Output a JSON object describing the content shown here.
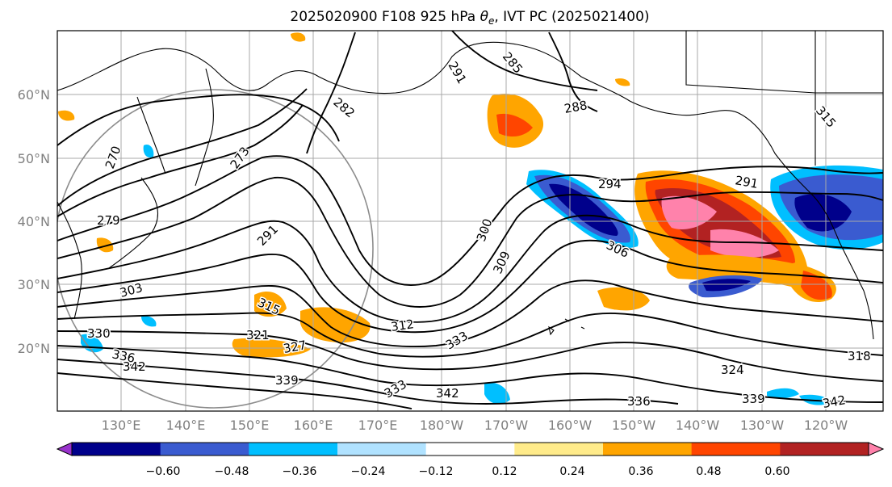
{
  "title": "2025020900 F108 925 hPa θe, IVT PC (2025021400)",
  "title_parts": {
    "prefix": "2025020900 F108 925 hPa ",
    "theta": "θ",
    "sub": "e",
    "suffix": ", IVT PC (2025021400)"
  },
  "lat_labels": [
    "60°N",
    "50°N",
    "40°N",
    "30°N",
    "20°N"
  ],
  "lon_labels": [
    "130°E",
    "140°E",
    "150°E",
    "160°E",
    "170°E",
    "180°W",
    "170°W",
    "160°W",
    "150°W",
    "140°W",
    "130°W",
    "120°W"
  ],
  "colorbar": {
    "ticks": [
      "−0.60",
      "−0.48",
      "−0.36",
      "−0.24",
      "−0.12",
      "0.12",
      "0.24",
      "0.36",
      "0.48",
      "0.60"
    ],
    "colors": [
      "#9932cc",
      "#00008b",
      "#3a5bd0",
      "#00bfff",
      "#b0e2ff",
      "#ffffff",
      "#ffeb8a",
      "#ffa500",
      "#ff4500",
      "#b22222",
      "#ff82ab"
    ]
  },
  "contour_labels": [
    "270",
    "273",
    "279",
    "282",
    "285",
    "288",
    "291",
    "291",
    "294",
    "300",
    "303",
    "306",
    "309",
    "312",
    "315",
    "318",
    "321",
    "324",
    "327",
    "330",
    "333",
    "333",
    "336",
    "336",
    "339",
    "339",
    "342",
    "342",
    "342",
    "315",
    "291"
  ],
  "colors": {
    "positive_core": "#ff82ab",
    "negative_core": "#00008b",
    "contour": "#000000",
    "grid": "#a8a8a8"
  }
}
